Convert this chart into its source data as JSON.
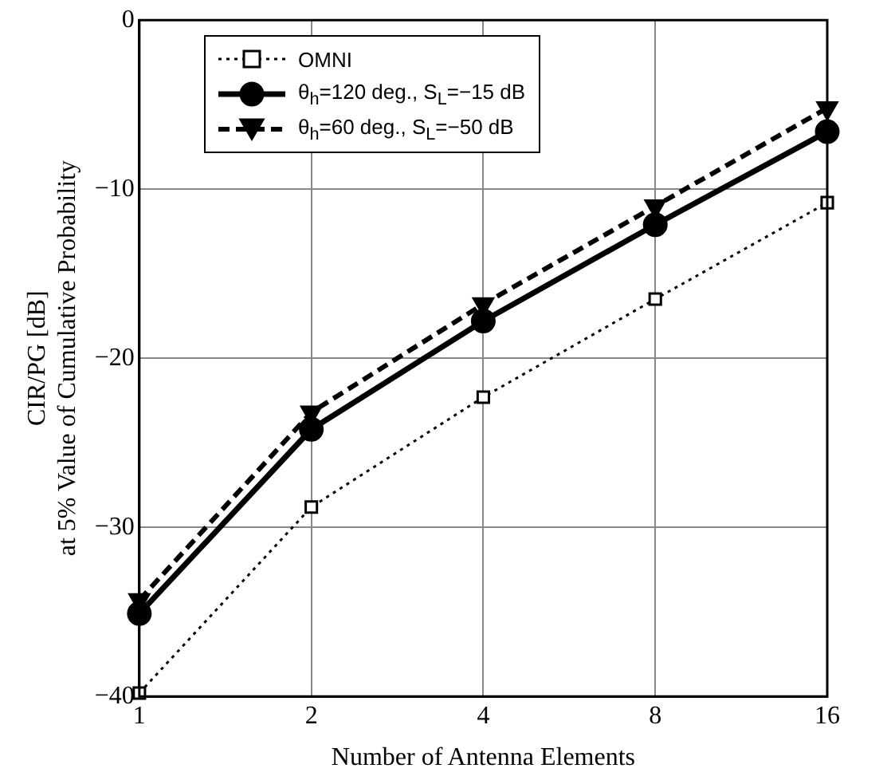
{
  "chart_data": {
    "type": "line",
    "xlabel": "Number of Antenna Elements",
    "ylabel": "CIR/PG [dB]\nat 5% Value of Cumulative Probability",
    "x": [
      1,
      2,
      4,
      8,
      16
    ],
    "log": "x",
    "xlim": [
      1,
      16
    ],
    "xticks": [
      1,
      2,
      4,
      8,
      16
    ],
    "ylim": [
      -40,
      0
    ],
    "yticks": [
      -40,
      -30,
      -20,
      -10,
      0
    ],
    "grid": true,
    "legend": "top left",
    "series": [
      {
        "name": "OMNI",
        "color": "#000000",
        "marker": "square",
        "line_style": "dotted",
        "values": [
          -39.8,
          -28.8,
          -22.3,
          -16.5,
          -10.8
        ]
      },
      {
        "name": "θ$_{h}$=120 deg., S$_{L}$=−15 dB",
        "color": "#000000",
        "marker": "circle",
        "line_style": "solid",
        "values": [
          -35.1,
          -24.2,
          -17.8,
          -12.1,
          -6.6
        ]
      },
      {
        "name": "θ$_{h}$=60 deg., S$_{L}$=−50 dB",
        "color": "#000000",
        "marker": "triangle",
        "line_style": "dashed",
        "values": [
          -34.3,
          -23.2,
          -16.8,
          -11.0,
          -5.2
        ]
      }
    ]
  }
}
